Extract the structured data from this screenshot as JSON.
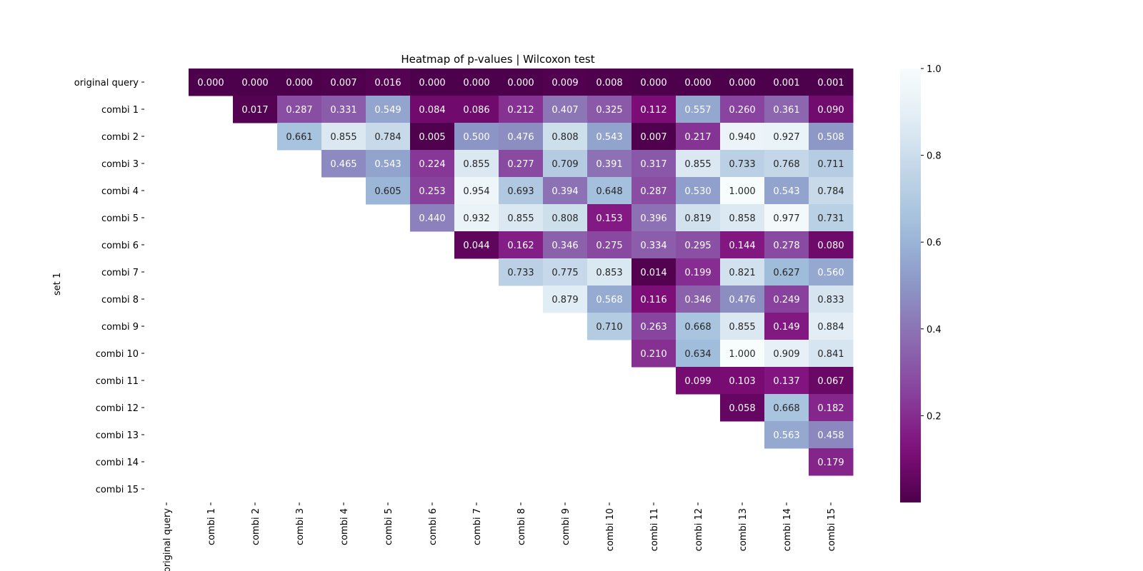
{
  "chart_data": {
    "type": "heatmap",
    "title": "Heatmap of p-values | Wilcoxon test",
    "ylabel": "set 1",
    "xlabel": "",
    "rows": [
      "original query",
      "combi 1",
      "combi 2",
      "combi 3",
      "combi 4",
      "combi 5",
      "combi 6",
      "combi 7",
      "combi 8",
      "combi 9",
      "combi 10",
      "combi 11",
      "combi 12",
      "combi 13",
      "combi 14",
      "combi 15"
    ],
    "cols": [
      "original query",
      "combi 1",
      "combi 2",
      "combi 3",
      "combi 4",
      "combi 5",
      "combi 6",
      "combi 7",
      "combi 8",
      "combi 9",
      "combi 10",
      "combi 11",
      "combi 12",
      "combi 13",
      "combi 14",
      "combi 15"
    ],
    "values": [
      [
        null,
        0.0,
        0.0,
        0.0,
        0.007,
        0.016,
        0.0,
        0.0,
        0.0,
        0.009,
        0.008,
        0.0,
        0.0,
        0.0,
        0.001,
        0.001
      ],
      [
        null,
        null,
        0.017,
        0.287,
        0.331,
        0.549,
        0.084,
        0.086,
        0.212,
        0.407,
        0.325,
        0.112,
        0.557,
        0.26,
        0.361,
        0.09
      ],
      [
        null,
        null,
        null,
        0.661,
        0.855,
        0.784,
        0.005,
        0.5,
        0.476,
        0.808,
        0.543,
        0.007,
        0.217,
        0.94,
        0.927,
        0.508
      ],
      [
        null,
        null,
        null,
        null,
        0.465,
        0.543,
        0.224,
        0.855,
        0.277,
        0.709,
        0.391,
        0.317,
        0.855,
        0.733,
        0.768,
        0.711
      ],
      [
        null,
        null,
        null,
        null,
        null,
        0.605,
        0.253,
        0.954,
        0.693,
        0.394,
        0.648,
        0.287,
        0.53,
        1.0,
        0.543,
        0.784
      ],
      [
        null,
        null,
        null,
        null,
        null,
        null,
        0.44,
        0.932,
        0.855,
        0.808,
        0.153,
        0.396,
        0.819,
        0.858,
        0.977,
        0.731
      ],
      [
        null,
        null,
        null,
        null,
        null,
        null,
        null,
        0.044,
        0.162,
        0.346,
        0.275,
        0.334,
        0.295,
        0.144,
        0.278,
        0.08
      ],
      [
        null,
        null,
        null,
        null,
        null,
        null,
        null,
        null,
        0.733,
        0.775,
        0.853,
        0.014,
        0.199,
        0.821,
        0.627,
        0.56
      ],
      [
        null,
        null,
        null,
        null,
        null,
        null,
        null,
        null,
        null,
        0.879,
        0.568,
        0.116,
        0.346,
        0.476,
        0.249,
        0.833
      ],
      [
        null,
        null,
        null,
        null,
        null,
        null,
        null,
        null,
        null,
        null,
        0.71,
        0.263,
        0.668,
        0.855,
        0.149,
        0.884
      ],
      [
        null,
        null,
        null,
        null,
        null,
        null,
        null,
        null,
        null,
        null,
        null,
        0.21,
        0.634,
        1.0,
        0.909,
        0.841
      ],
      [
        null,
        null,
        null,
        null,
        null,
        null,
        null,
        null,
        null,
        null,
        null,
        null,
        0.099,
        0.103,
        0.137,
        0.067
      ],
      [
        null,
        null,
        null,
        null,
        null,
        null,
        null,
        null,
        null,
        null,
        null,
        null,
        null,
        0.058,
        0.668,
        0.182
      ],
      [
        null,
        null,
        null,
        null,
        null,
        null,
        null,
        null,
        null,
        null,
        null,
        null,
        null,
        null,
        0.563,
        0.458
      ],
      [
        null,
        null,
        null,
        null,
        null,
        null,
        null,
        null,
        null,
        null,
        null,
        null,
        null,
        null,
        null,
        0.179
      ],
      [
        null,
        null,
        null,
        null,
        null,
        null,
        null,
        null,
        null,
        null,
        null,
        null,
        null,
        null,
        null,
        null
      ]
    ],
    "colormap": "BuPu_r",
    "vmin": 0.0,
    "vmax": 1.0,
    "colorbar_ticks": [
      0.2,
      0.4,
      0.6,
      0.8,
      1.0
    ],
    "grid": false,
    "annotations": "values shown in each cell, 3 decimals"
  }
}
